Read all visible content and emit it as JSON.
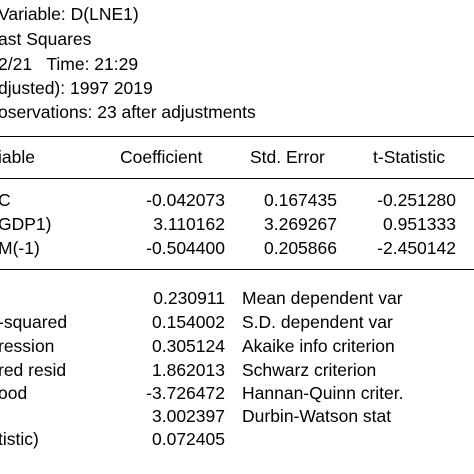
{
  "header": {
    "dependent": "Variable: D(LNE1)",
    "method": "ast Squares",
    "datetime": "2/21   Time: 21:29",
    "sample": "djusted): 1997 2019",
    "observations": "oservations: 23 after adjustments"
  },
  "coef_table": {
    "columns": [
      "iable",
      "Coefficient",
      "Std. Error",
      "t-Statistic"
    ],
    "rows": [
      {
        "variable": "C",
        "coefficient": "-0.042073",
        "std_error": "0.167435",
        "t_stat": "-0.251280"
      },
      {
        "variable": "GDP1)",
        "coefficient": "3.110162",
        "std_error": "3.269267",
        "t_stat": "0.951333"
      },
      {
        "variable": "M(-1)",
        "coefficient": "-0.504400",
        "std_error": "0.205866",
        "t_stat": "-2.450142"
      }
    ]
  },
  "stats": {
    "rows": [
      {
        "label": "",
        "value": "0.230911",
        "label2": "Mean dependent var"
      },
      {
        "label": "-squared",
        "value": "0.154002",
        "label2": "S.D. dependent var"
      },
      {
        "label": "ression",
        "value": "0.305124",
        "label2": "Akaike info criterion"
      },
      {
        "label": "red resid",
        "value": "1.862013",
        "label2": "Schwarz criterion"
      },
      {
        "label": "ood",
        "value": "-3.726472",
        "label2": "Hannan-Quinn criter."
      },
      {
        "label": "",
        "value": "3.002397",
        "label2": "Durbin-Watson stat"
      },
      {
        "label": "tistic)",
        "value": "0.072405",
        "label2": ""
      }
    ]
  }
}
